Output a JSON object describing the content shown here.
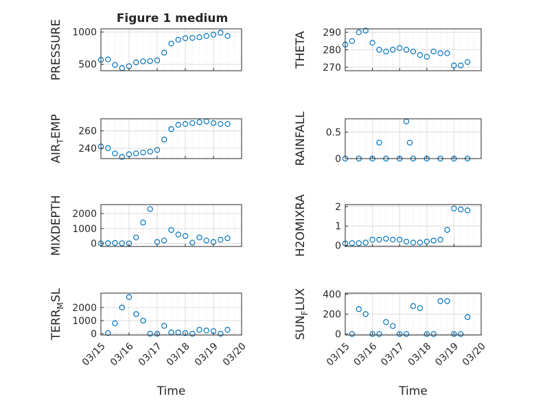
{
  "figure": {
    "title": "Figure 1 medium"
  },
  "chart_data": [
    {
      "type": "scatter",
      "ylabel": "PRESSURE",
      "xlabel": "",
      "xlim": [
        "03/15",
        "03/20"
      ],
      "ylim": [
        400,
        1050
      ],
      "yticks": [
        500,
        1000
      ],
      "x": [
        "03/15 00:00",
        "03/15 06:00",
        "03/15 12:00",
        "03/15 18:00",
        "03/16 00:00",
        "03/16 06:00",
        "03/16 12:00",
        "03/16 18:00",
        "03/17 00:00",
        "03/17 06:00",
        "03/17 12:00",
        "03/17 18:00",
        "03/18 00:00",
        "03/18 06:00",
        "03/18 12:00",
        "03/18 18:00",
        "03/19 00:00",
        "03/19 06:00",
        "03/19 12:00"
      ],
      "y": [
        570,
        575,
        490,
        440,
        470,
        530,
        545,
        550,
        560,
        680,
        820,
        880,
        905,
        910,
        920,
        940,
        960,
        990,
        940
      ]
    },
    {
      "type": "scatter",
      "ylabel": "THETA",
      "xlabel": "",
      "xlim": [
        "03/15",
        "03/20"
      ],
      "ylim": [
        268,
        292
      ],
      "yticks": [
        270,
        280,
        290
      ],
      "x": [
        "03/15 00:00",
        "03/15 06:00",
        "03/15 12:00",
        "03/15 18:00",
        "03/16 00:00",
        "03/16 06:00",
        "03/16 12:00",
        "03/16 18:00",
        "03/17 00:00",
        "03/17 06:00",
        "03/17 12:00",
        "03/17 18:00",
        "03/18 00:00",
        "03/18 06:00",
        "03/18 12:00",
        "03/18 18:00",
        "03/19 00:00",
        "03/19 06:00",
        "03/19 12:00"
      ],
      "y": [
        283,
        285,
        290,
        291,
        284,
        280,
        279,
        280,
        281,
        280,
        279,
        277,
        276,
        279,
        278,
        278,
        271,
        271,
        273
      ]
    },
    {
      "type": "scatter",
      "ylabel": "AIR_TEMP",
      "xlabel": "",
      "xlim": [
        "03/15",
        "03/20"
      ],
      "ylim": [
        228,
        274
      ],
      "yticks": [
        240,
        260
      ],
      "x": [
        "03/15 00:00",
        "03/15 06:00",
        "03/15 12:00",
        "03/15 18:00",
        "03/16 00:00",
        "03/16 06:00",
        "03/16 12:00",
        "03/16 18:00",
        "03/17 00:00",
        "03/17 06:00",
        "03/17 12:00",
        "03/17 18:00",
        "03/18 00:00",
        "03/18 06:00",
        "03/18 12:00",
        "03/18 18:00",
        "03/19 00:00",
        "03/19 06:00",
        "03/19 12:00"
      ],
      "y": [
        242,
        240,
        234,
        230,
        233,
        234,
        235,
        236,
        238,
        250,
        262,
        267,
        268,
        269,
        270,
        271,
        269,
        268,
        268
      ]
    },
    {
      "type": "scatter",
      "ylabel": "RAINFALL",
      "xlabel": "",
      "xlim": [
        "03/15",
        "03/20"
      ],
      "ylim": [
        0,
        0.75
      ],
      "yticks": [
        0,
        0.5
      ],
      "x": [
        "03/15 00:00",
        "03/15 12:00",
        "03/16 00:00",
        "03/16 06:00",
        "03/16 12:00",
        "03/17 00:00",
        "03/17 06:00",
        "03/17 09:00",
        "03/17 12:00",
        "03/18 00:00",
        "03/18 12:00",
        "03/19 00:00",
        "03/19 12:00"
      ],
      "y": [
        0,
        0,
        0,
        0.3,
        0,
        0,
        0.7,
        0.3,
        0,
        0,
        0,
        0,
        0
      ]
    },
    {
      "type": "scatter",
      "ylabel": "MIXDEPTH",
      "xlabel": "",
      "xlim": [
        "03/15",
        "03/20"
      ],
      "ylim": [
        -200,
        2600
      ],
      "yticks": [
        0,
        1000,
        2000
      ],
      "x": [
        "03/15 00:00",
        "03/15 06:00",
        "03/15 12:00",
        "03/15 18:00",
        "03/16 00:00",
        "03/16 06:00",
        "03/16 12:00",
        "03/16 18:00",
        "03/17 00:00",
        "03/17 06:00",
        "03/17 12:00",
        "03/17 18:00",
        "03/18 00:00",
        "03/18 06:00",
        "03/18 12:00",
        "03/18 18:00",
        "03/19 00:00",
        "03/19 06:00",
        "03/19 12:00"
      ],
      "y": [
        0,
        20,
        30,
        10,
        0,
        400,
        1400,
        2300,
        100,
        200,
        900,
        600,
        500,
        50,
        400,
        200,
        100,
        250,
        350
      ]
    },
    {
      "type": "scatter",
      "ylabel": "H2OMIXRA",
      "xlabel": "",
      "xlim": [
        "03/15",
        "03/20"
      ],
      "ylim": [
        -0.05,
        2.1
      ],
      "yticks": [
        0,
        1,
        2
      ],
      "x": [
        "03/15 00:00",
        "03/15 06:00",
        "03/15 12:00",
        "03/15 18:00",
        "03/16 00:00",
        "03/16 06:00",
        "03/16 12:00",
        "03/16 18:00",
        "03/17 00:00",
        "03/17 06:00",
        "03/17 12:00",
        "03/17 18:00",
        "03/18 00:00",
        "03/18 06:00",
        "03/18 12:00",
        "03/18 18:00",
        "03/19 00:00",
        "03/19 06:00",
        "03/19 12:00"
      ],
      "y": [
        0.1,
        0.12,
        0.12,
        0.15,
        0.3,
        0.3,
        0.35,
        0.3,
        0.3,
        0.2,
        0.15,
        0.15,
        0.2,
        0.25,
        0.3,
        0.8,
        1.9,
        1.85,
        1.8
      ]
    },
    {
      "type": "scatter",
      "ylabel": "TERR_MSL",
      "xlabel": "Time",
      "xlim": [
        "03/15",
        "03/20"
      ],
      "ylim": [
        -100,
        3100
      ],
      "yticks": [
        0,
        1000,
        2000
      ],
      "xticks": [
        "03/15",
        "03/16",
        "03/17",
        "03/18",
        "03/19",
        "03/20"
      ],
      "x": [
        "03/15 06:00",
        "03/15 12:00",
        "03/15 18:00",
        "03/16 00:00",
        "03/16 06:00",
        "03/16 12:00",
        "03/16 18:00",
        "03/17 00:00",
        "03/17 06:00",
        "03/17 12:00",
        "03/17 18:00",
        "03/18 00:00",
        "03/18 06:00",
        "03/18 12:00",
        "03/18 18:00",
        "03/19 00:00",
        "03/19 06:00",
        "03/19 12:00"
      ],
      "y": [
        50,
        800,
        2000,
        2800,
        1500,
        1000,
        0,
        0,
        600,
        100,
        100,
        50,
        0,
        300,
        250,
        200,
        0,
        300
      ]
    },
    {
      "type": "scatter",
      "ylabel": "SUN_FLUX",
      "xlabel": "Time",
      "xlim": [
        "03/15",
        "03/20"
      ],
      "ylim": [
        -10,
        410
      ],
      "yticks": [
        0,
        200,
        400
      ],
      "xticks": [
        "03/15",
        "03/16",
        "03/17",
        "03/18",
        "03/19",
        "03/20"
      ],
      "x": [
        "03/15 06:00",
        "03/15 12:00",
        "03/15 18:00",
        "03/16 00:00",
        "03/16 06:00",
        "03/16 12:00",
        "03/16 18:00",
        "03/17 00:00",
        "03/17 06:00",
        "03/17 12:00",
        "03/17 18:00",
        "03/18 00:00",
        "03/18 06:00",
        "03/18 12:00",
        "03/18 18:00",
        "03/19 00:00",
        "03/19 06:00",
        "03/19 12:00"
      ],
      "y": [
        0,
        250,
        200,
        0,
        0,
        120,
        80,
        0,
        0,
        280,
        260,
        0,
        0,
        330,
        330,
        0,
        0,
        170
      ]
    }
  ]
}
